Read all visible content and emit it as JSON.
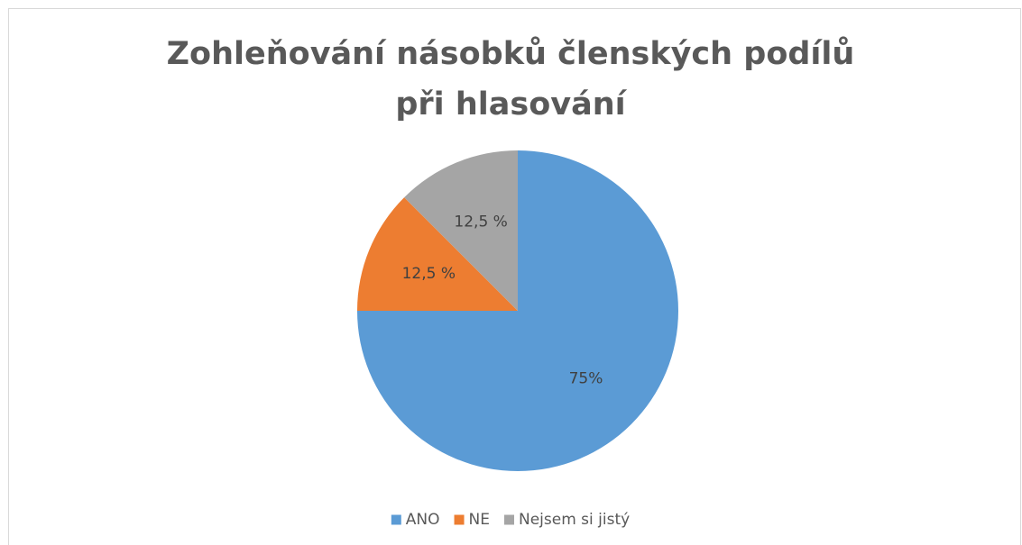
{
  "chart_data": {
    "type": "pie",
    "title": "Zohleňování násobků členských podílů při hlasování",
    "categories": [
      "ANO",
      "NE",
      "Nejsem si jistý"
    ],
    "values": [
      75,
      12.5,
      12.5
    ],
    "value_labels": [
      "75%",
      "12,5 %",
      "12,5 %"
    ],
    "colors": [
      "#5b9bd5",
      "#ed7d31",
      "#a5a5a5"
    ],
    "legend": "bottom"
  }
}
